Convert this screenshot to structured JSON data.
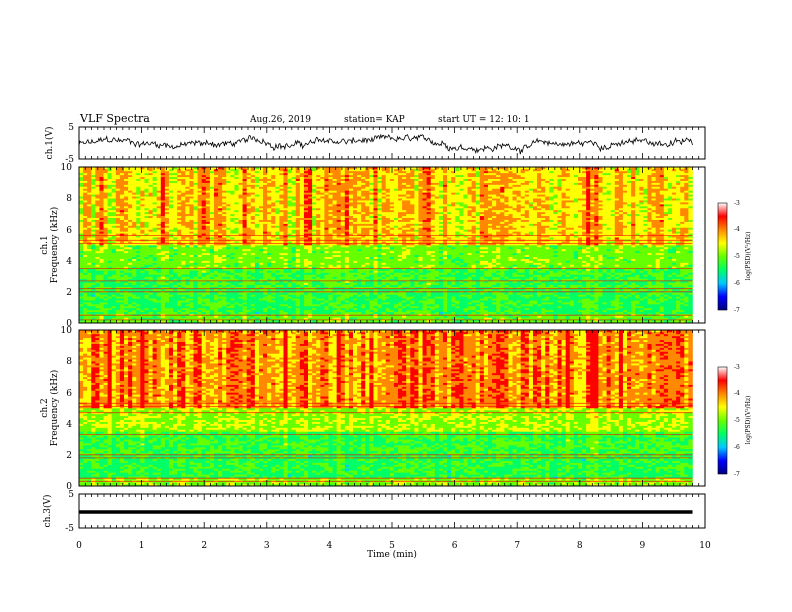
{
  "header": {
    "title": "VLF Spectra",
    "date": "Aug.26, 2019",
    "station": "station= KAP",
    "start": "start  UT =   12: 10: 1"
  },
  "colors": {
    "ramp": [
      "#000080",
      "#0000ff",
      "#00c8ff",
      "#00ff66",
      "#66ff00",
      "#ffff00",
      "#ff8800",
      "#ff0000",
      "#ffffff"
    ],
    "trace": "#000000"
  },
  "chart_data": [
    {
      "type": "line",
      "ylabel": "ch.1(V)",
      "ylim": [
        -5,
        5
      ],
      "yticks": [
        "5",
        "-5"
      ],
      "x_range_min": [
        0,
        9.8
      ],
      "description_level": "noise waveform roughly between -3 and 2 V"
    },
    {
      "type": "heatmap",
      "ylabel": "Frequency (kHz)",
      "ylabel_top": "ch.1",
      "ylim": [
        0,
        10
      ],
      "yticks": [
        "0",
        "2",
        "4",
        "6",
        "8",
        "10"
      ],
      "colorbar": {
        "label": "log(PSD)(V²/Hz)",
        "range": [
          -7,
          -3
        ],
        "ticks": [
          "-3",
          "-4",
          "-5",
          "-6",
          "-7"
        ]
      },
      "bands_khz": [
        {
          "from": 0,
          "to": 0.6,
          "level": -4.8
        },
        {
          "from": 0.6,
          "to": 2.2,
          "level": -5.1
        },
        {
          "from": 2.2,
          "to": 3.5,
          "level": -5.0
        },
        {
          "from": 3.5,
          "to": 5.0,
          "level": -4.7
        },
        {
          "from": 5.0,
          "to": 10,
          "level": -4.0
        }
      ],
      "lines_khz": [
        0.2,
        0.5,
        2.0,
        2.2,
        2.7,
        3.5,
        5.1,
        5.3,
        5.6
      ]
    },
    {
      "type": "heatmap",
      "ylabel": "Frequency (kHz)",
      "ylabel_top": "ch.2",
      "ylim": [
        0,
        10
      ],
      "yticks": [
        "0",
        "2",
        "4",
        "6",
        "8",
        "10"
      ],
      "colorbar": {
        "label": "log(PSD)(V²/Hz)",
        "range": [
          -7,
          -3
        ],
        "ticks": [
          "-3",
          "-4",
          "-5",
          "-6",
          "-7"
        ]
      },
      "bands_khz": [
        {
          "from": 0,
          "to": 0.5,
          "level": -4.6
        },
        {
          "from": 0.5,
          "to": 2.0,
          "level": -5.1
        },
        {
          "from": 2.0,
          "to": 3.5,
          "level": -5.0
        },
        {
          "from": 3.5,
          "to": 5.0,
          "level": -4.5
        },
        {
          "from": 5.0,
          "to": 10,
          "level": -3.6
        }
      ],
      "lines_khz": [
        0.3,
        0.5,
        1.8,
        2.0,
        3.3,
        4.7,
        5.1,
        5.3
      ]
    },
    {
      "type": "line",
      "ylabel": "ch.3(V)",
      "ylim": [
        -5,
        5
      ],
      "yticks": [
        "5",
        "-5"
      ],
      "level_v": 0
    }
  ],
  "xaxis": {
    "label": "Time  (min)",
    "range": [
      0,
      10
    ],
    "ticks": [
      "0",
      "1",
      "2",
      "3",
      "4",
      "5",
      "6",
      "7",
      "8",
      "9",
      "10"
    ],
    "data_end_min": 9.8
  }
}
